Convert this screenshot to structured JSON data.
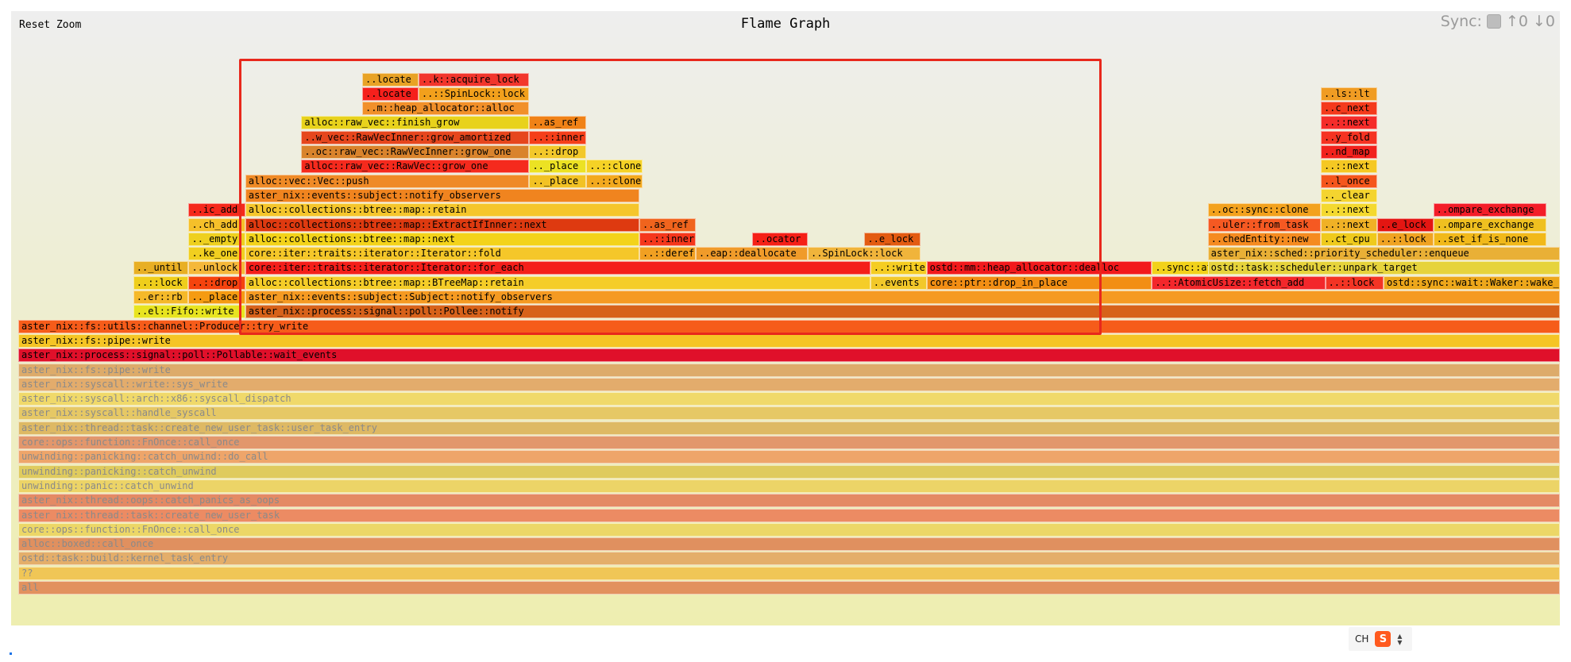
{
  "toolbar": {
    "reset_zoom": "Reset Zoom",
    "title": "Flame Graph",
    "sync_label": "Sync:",
    "sync_up": "↑0",
    "sync_down": "↓0"
  },
  "ime": {
    "label": "CH",
    "logo": "S"
  },
  "colors": {
    "selection": "#e8281c",
    "bg_top": "#eeeeee",
    "bg_bottom": "#eeeeb0"
  },
  "frames": [
    {
      "label": "all",
      "depth": 0,
      "start": 0,
      "width": 1,
      "color": "#e2915e",
      "faded": true
    },
    {
      "label": "??",
      "depth": 1,
      "start": 0,
      "width": 1,
      "color": "#f0c656",
      "faded": true
    },
    {
      "label": "ostd::task::build::kernel_task_entry",
      "depth": 2,
      "start": 0,
      "width": 1,
      "color": "#e4ae6a",
      "faded": true
    },
    {
      "label": "alloc::boxed::call_once",
      "depth": 3,
      "start": 0,
      "width": 1,
      "color": "#e0905f",
      "faded": true
    },
    {
      "label": "core::ops::function::FnOnce::call_once",
      "depth": 4,
      "start": 0,
      "width": 1,
      "color": "#ecd767",
      "faded": true
    },
    {
      "label": "aster_nix::thread::task::create_new_user_task",
      "depth": 5,
      "start": 0,
      "width": 1,
      "color": "#ec8b63",
      "faded": true
    },
    {
      "label": "aster_nix::thread::oops::catch_panics_as_oops",
      "depth": 6,
      "start": 0,
      "width": 1,
      "color": "#e48a64",
      "faded": true
    },
    {
      "label": "unwinding::panic::catch_unwind",
      "depth": 7,
      "start": 0,
      "width": 1,
      "color": "#ecd467",
      "faded": true
    },
    {
      "label": "unwinding::panicking::catch_unwind",
      "depth": 8,
      "start": 0,
      "width": 1,
      "color": "#dfcb5e",
      "faded": true
    },
    {
      "label": "unwinding::panicking::catch_unwind::do_call",
      "depth": 9,
      "start": 0,
      "width": 1,
      "color": "#eea56a",
      "faded": true
    },
    {
      "label": "core::ops::function::FnOnce::call_once",
      "depth": 10,
      "start": 0,
      "width": 1,
      "color": "#e2976c",
      "faded": true
    },
    {
      "label": "aster_nix::thread::task::create_new_user_task::user_task_entry",
      "depth": 11,
      "start": 0,
      "width": 1,
      "color": "#deb964",
      "faded": true
    },
    {
      "label": "aster_nix::syscall::handle_syscall",
      "depth": 12,
      "start": 0,
      "width": 1,
      "color": "#e6c865",
      "faded": true
    },
    {
      "label": "aster_nix::syscall::arch::x86::syscall_dispatch",
      "depth": 13,
      "start": 0,
      "width": 1,
      "color": "#f0d96a",
      "faded": true
    },
    {
      "label": "aster_nix::syscall::write::sys_write",
      "depth": 14,
      "start": 0,
      "width": 1,
      "color": "#e3ac6c",
      "faded": true
    },
    {
      "label": "aster_nix::fs::pipe::write",
      "depth": 15,
      "start": 0,
      "width": 1,
      "color": "#ddab6a",
      "faded": true
    },
    {
      "label": "aster_nix::process::signal::poll::Pollable::wait_events",
      "depth": 16,
      "start": 0,
      "width": 1,
      "color": "#e0102a",
      "faded": false
    },
    {
      "label": "aster_nix::fs::pipe::write",
      "depth": 17,
      "start": 0,
      "width": 1,
      "color": "#f5c525",
      "faded": false
    },
    {
      "label": "aster_nix::fs::utils::channel::Producer::try_write",
      "depth": 18,
      "start": 0,
      "width": 1,
      "color": "#f65c1a",
      "faded": false
    },
    {
      "label": "..el::Fifo::write",
      "depth": 19,
      "start": 0.0746,
      "width": 0.0727,
      "color": "#e8e420",
      "faded": false
    },
    {
      "label": "aster_nix::process::signal::poll::Pollee::notify",
      "depth": 19,
      "start": 0.1473,
      "width": 0.8527,
      "color": "#d7621a",
      "faded": false
    },
    {
      "label": "..er::rb",
      "depth": 20,
      "start": 0.0746,
      "width": 0.0359,
      "color": "#f5b92a",
      "faded": false
    },
    {
      "label": ".._place",
      "depth": 20,
      "start": 0.1105,
      "width": 0.0368,
      "color": "#f59b12",
      "faded": false
    },
    {
      "label": "aster_nix::events::subject::Subject::notify_observers",
      "depth": 20,
      "start": 0.1473,
      "width": 0.8527,
      "color": "#f59a22",
      "faded": false
    },
    {
      "label": "..::lock",
      "depth": 21,
      "start": 0.0746,
      "width": 0.0359,
      "color": "#efce1c",
      "faded": false
    },
    {
      "label": "..::drop",
      "depth": 21,
      "start": 0.1105,
      "width": 0.0368,
      "color": "#f5430e",
      "faded": false
    },
    {
      "label": "alloc::collections::btree::map::BTreeMap::retain",
      "depth": 21,
      "start": 0.1473,
      "width": 0.4054,
      "color": "#f5cd28",
      "faded": false
    },
    {
      "label": "..events",
      "depth": 21,
      "start": 0.5527,
      "width": 0.0365,
      "color": "#f2c82a",
      "faded": false
    },
    {
      "label": "core::ptr::drop_in_place",
      "depth": 21,
      "start": 0.5892,
      "width": 0.1462,
      "color": "#f28e14",
      "faded": false
    },
    {
      "label": "..::AtomicUsize::fetch_add",
      "depth": 21,
      "start": 0.7354,
      "width": 0.1124,
      "color": "#f3272b",
      "faded": false
    },
    {
      "label": "..::lock",
      "depth": 21,
      "start": 0.8478,
      "width": 0.0378,
      "color": "#f33424",
      "faded": false
    },
    {
      "label": "ostd::sync::wait::Waker::wake_up",
      "depth": 21,
      "start": 0.8856,
      "width": 0.1144,
      "color": "#eda71b",
      "faded": false
    },
    {
      "label": ".._until",
      "depth": 22,
      "start": 0.0746,
      "width": 0.0359,
      "color": "#e8af24",
      "faded": false
    },
    {
      "label": "..unlock",
      "depth": 22,
      "start": 0.1105,
      "width": 0.0368,
      "color": "#f5b83a",
      "faded": false
    },
    {
      "label": "core::iter::traits::iterator::Iterator::for_each",
      "depth": 22,
      "start": 0.1473,
      "width": 0.4054,
      "color": "#f41f1a",
      "faded": false
    },
    {
      "label": "..::write",
      "depth": 22,
      "start": 0.5527,
      "width": 0.0365,
      "color": "#f5cd22",
      "faded": false
    },
    {
      "label": "ostd::mm::heap_allocator::dealloc",
      "depth": 22,
      "start": 0.5892,
      "width": 0.1462,
      "color": "#f2191c",
      "faded": false
    },
    {
      "label": "..sync::atomic::atomic_add",
      "depth": 22,
      "start": 0.7354,
      "width": 0.1124,
      "color": "#f2d21a",
      "faded": false
    },
    {
      "label": "..e_lock",
      "depth": 22,
      "start": 0.8478,
      "width": 0.0378,
      "color": "#ef9c23",
      "faded": false
    },
    {
      "label": "ostd::task::scheduler::unpark_target",
      "depth": 22,
      "start": 0.7716,
      "width": 0.2284,
      "color": "#e6d33c",
      "faded": false
    },
    {
      "label": "..ke_one",
      "depth": 23,
      "start": 0.1105,
      "width": 0.0368,
      "color": "#f1cf20",
      "faded": false
    },
    {
      "label": "core::iter::traits::iterator::Iterator::fold",
      "depth": 23,
      "start": 0.1473,
      "width": 0.2556,
      "color": "#f5c729",
      "faded": false
    },
    {
      "label": "..::deref",
      "depth": 23,
      "start": 0.4029,
      "width": 0.0365,
      "color": "#f1a022",
      "faded": false
    },
    {
      "label": "..eap::deallocate",
      "depth": 23,
      "start": 0.4394,
      "width": 0.0727,
      "color": "#f09b2a",
      "faded": false
    },
    {
      "label": "..SpinLock::lock",
      "depth": 23,
      "start": 0.5121,
      "width": 0.0733,
      "color": "#f0b43b",
      "faded": false
    },
    {
      "label": "aster_nix::sched::priority_scheduler::enqueue",
      "depth": 23,
      "start": 0.7716,
      "width": 0.2284,
      "color": "#e9b036",
      "faded": false
    },
    {
      "label": ".._empty",
      "depth": 24,
      "start": 0.1105,
      "width": 0.0368,
      "color": "#eed01f",
      "faded": false
    },
    {
      "label": "alloc::collections::btree::map::next",
      "depth": 24,
      "start": 0.1473,
      "width": 0.2556,
      "color": "#f3d31a",
      "faded": false
    },
    {
      "label": "..::inner",
      "depth": 24,
      "start": 0.4029,
      "width": 0.0365,
      "color": "#f5371c",
      "faded": false
    },
    {
      "label": "..ocator",
      "depth": 24,
      "start": 0.4758,
      "width": 0.0365,
      "color": "#f52017",
      "faded": false
    },
    {
      "label": "..e_lock",
      "depth": 24,
      "start": 0.5489,
      "width": 0.0365,
      "color": "#e35b12",
      "faded": false
    },
    {
      "label": "..chedEntity::new",
      "depth": 24,
      "start": 0.7716,
      "width": 0.0733,
      "color": "#f58b20",
      "faded": false
    },
    {
      "label": "..ct_cpu",
      "depth": 24,
      "start": 0.8449,
      "width": 0.0365,
      "color": "#efca1c",
      "faded": false
    },
    {
      "label": "..::lock",
      "depth": 24,
      "start": 0.8814,
      "width": 0.0365,
      "color": "#f0a322",
      "faded": false
    },
    {
      "label": "..set_if_is_none",
      "depth": 24,
      "start": 0.9179,
      "width": 0.0733,
      "color": "#f1b91a",
      "faded": false
    },
    {
      "label": "..ch_add",
      "depth": 25,
      "start": 0.1105,
      "width": 0.0368,
      "color": "#f5c02a",
      "faded": false
    },
    {
      "label": "alloc::collections::btree::map::ExtractIfInner::next",
      "depth": 25,
      "start": 0.1473,
      "width": 0.2556,
      "color": "#de3a10",
      "faded": false
    },
    {
      "label": "..as_ref",
      "depth": 25,
      "start": 0.4029,
      "width": 0.0365,
      "color": "#f0641d",
      "faded": false
    },
    {
      "label": "..uler::from_task",
      "depth": 25,
      "start": 0.7716,
      "width": 0.0733,
      "color": "#f55922",
      "faded": false
    },
    {
      "label": "..::next",
      "depth": 25,
      "start": 0.8449,
      "width": 0.0365,
      "color": "#f0b126",
      "faded": false
    },
    {
      "label": "..e_lock",
      "depth": 25,
      "start": 0.8814,
      "width": 0.0365,
      "color": "#e41612",
      "faded": false
    },
    {
      "label": "..ompare_exchange",
      "depth": 25,
      "start": 0.9179,
      "width": 0.0733,
      "color": "#efc020",
      "faded": false
    },
    {
      "label": "..ic_add",
      "depth": 26,
      "start": 0.1105,
      "width": 0.0368,
      "color": "#f5291c",
      "faded": false
    },
    {
      "label": "alloc::collections::btree::map::retain",
      "depth": 26,
      "start": 0.1473,
      "width": 0.2556,
      "color": "#f5c62c",
      "faded": false
    },
    {
      "label": "..oc::sync::clone",
      "depth": 26,
      "start": 0.7716,
      "width": 0.0733,
      "color": "#f3a21e",
      "faded": false
    },
    {
      "label": "..::next",
      "depth": 26,
      "start": 0.8449,
      "width": 0.0365,
      "color": "#f4d92f",
      "faded": false
    },
    {
      "label": "..ompare_exchange",
      "depth": 26,
      "start": 0.9179,
      "width": 0.0733,
      "color": "#f31d28",
      "faded": false
    },
    {
      "label": "aster_nix::events::subject::notify_observers",
      "depth": 27,
      "start": 0.1473,
      "width": 0.2556,
      "color": "#f0841f",
      "faded": false
    },
    {
      "label": ".._clear",
      "depth": 27,
      "start": 0.8449,
      "width": 0.0365,
      "color": "#f4d42f",
      "faded": false
    },
    {
      "label": "alloc::vec::Vec::push",
      "depth": 28,
      "start": 0.1473,
      "width": 0.1842,
      "color": "#ef8a26",
      "faded": false
    },
    {
      "label": ".._place",
      "depth": 28,
      "start": 0.3315,
      "width": 0.037,
      "color": "#f2c224",
      "faded": false
    },
    {
      "label": "..::clone",
      "depth": 28,
      "start": 0.3685,
      "width": 0.0365,
      "color": "#f3a91e",
      "faded": false
    },
    {
      "label": "..l_once",
      "depth": 28,
      "start": 0.8449,
      "width": 0.0365,
      "color": "#f5561c",
      "faded": false
    },
    {
      "label": "alloc::raw_vec::RawVec::grow_one",
      "depth": 29,
      "start": 0.1836,
      "width": 0.1479,
      "color": "#f52a1d",
      "faded": false
    },
    {
      "label": ".._place",
      "depth": 29,
      "start": 0.3315,
      "width": 0.037,
      "color": "#ece223",
      "faded": false
    },
    {
      "label": "..::clone",
      "depth": 29,
      "start": 0.3685,
      "width": 0.0365,
      "color": "#f5d226",
      "faded": false
    },
    {
      "label": "..::next",
      "depth": 29,
      "start": 0.8449,
      "width": 0.0365,
      "color": "#f5c823",
      "faded": false
    },
    {
      "label": "..oc::raw_vec::RawVecInner::grow_one",
      "depth": 30,
      "start": 0.1836,
      "width": 0.1479,
      "color": "#d9832c",
      "faded": false
    },
    {
      "label": "..::drop",
      "depth": 30,
      "start": 0.3315,
      "width": 0.037,
      "color": "#f2c82a",
      "faded": false
    },
    {
      "label": "..nd_map",
      "depth": 30,
      "start": 0.8449,
      "width": 0.0365,
      "color": "#f2221d",
      "faded": false
    },
    {
      "label": "..w_vec::RawVecInner::grow_amortized",
      "depth": 31,
      "start": 0.1836,
      "width": 0.1479,
      "color": "#e6461d",
      "faded": false
    },
    {
      "label": "..::inner",
      "depth": 31,
      "start": 0.3315,
      "width": 0.037,
      "color": "#f53f1a",
      "faded": false
    },
    {
      "label": "..y_fold",
      "depth": 31,
      "start": 0.8449,
      "width": 0.0365,
      "color": "#f53322",
      "faded": false
    },
    {
      "label": "alloc::raw_vec::finish_grow",
      "depth": 32,
      "start": 0.1836,
      "width": 0.1479,
      "color": "#e8d21c",
      "faded": false
    },
    {
      "label": "..as_ref",
      "depth": 32,
      "start": 0.3315,
      "width": 0.037,
      "color": "#f08217",
      "faded": false
    },
    {
      "label": "..::next",
      "depth": 32,
      "start": 0.8449,
      "width": 0.0365,
      "color": "#f52c2a",
      "faded": false
    },
    {
      "label": "..m::heap_allocator::alloc",
      "depth": 33,
      "start": 0.2231,
      "width": 0.1084,
      "color": "#f1902a",
      "faded": false
    },
    {
      "label": "..c_next",
      "depth": 33,
      "start": 0.8449,
      "width": 0.0365,
      "color": "#f43a1c",
      "faded": false
    },
    {
      "label": "..locate",
      "depth": 34,
      "start": 0.2231,
      "width": 0.0365,
      "color": "#f5201c",
      "faded": false
    },
    {
      "label": "..::SpinLock::lock",
      "depth": 34,
      "start": 0.2596,
      "width": 0.0719,
      "color": "#f2a01c",
      "faded": false
    },
    {
      "label": "..ls::lt",
      "depth": 34,
      "start": 0.8449,
      "width": 0.0365,
      "color": "#f09c23",
      "faded": false
    },
    {
      "label": "..locate",
      "depth": 35,
      "start": 0.2231,
      "width": 0.0365,
      "color": "#e8a325",
      "faded": false
    },
    {
      "label": "..k::acquire_lock",
      "depth": 35,
      "start": 0.2596,
      "width": 0.0719,
      "color": "#f2362c",
      "faded": false
    }
  ]
}
